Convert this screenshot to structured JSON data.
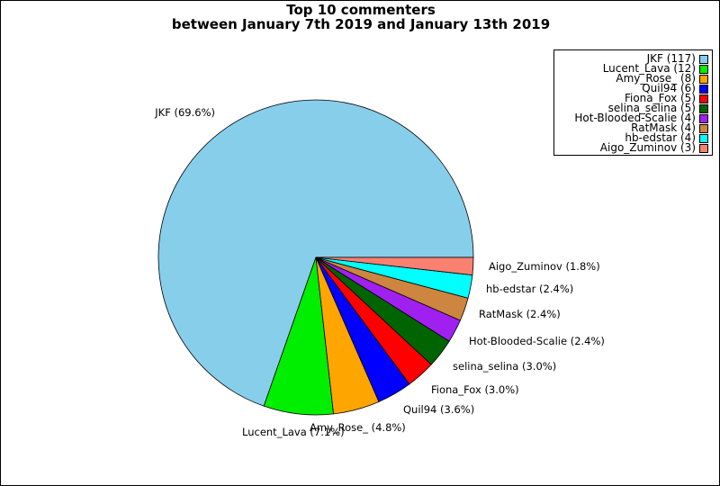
{
  "chart_data": {
    "type": "pie",
    "title": "Top 10 commenters",
    "subtitle": "between January 7th 2019 and January 13th 2019",
    "slices": [
      {
        "name": "JKF",
        "value": 117,
        "percent": "69.6%",
        "color": "#87CEEB"
      },
      {
        "name": "Lucent_Lava",
        "value": 12,
        "percent": "7.1%",
        "color": "#00EE00"
      },
      {
        "name": "Amy_Rose_",
        "value": 8,
        "percent": "4.8%",
        "color": "#FFA500"
      },
      {
        "name": "Quil94",
        "value": 6,
        "percent": "3.6%",
        "color": "#0000FF"
      },
      {
        "name": "Fiona_Fox",
        "value": 5,
        "percent": "3.0%",
        "color": "#FF0000"
      },
      {
        "name": "selina_selina",
        "value": 5,
        "percent": "3.0%",
        "color": "#006400"
      },
      {
        "name": "Hot-Blooded-Scalie",
        "value": 4,
        "percent": "2.4%",
        "color": "#A020F0"
      },
      {
        "name": "RatMask",
        "value": 4,
        "percent": "2.4%",
        "color": "#CD853F"
      },
      {
        "name": "hb-edstar",
        "value": 4,
        "percent": "2.4%",
        "color": "#00FFFF"
      },
      {
        "name": "Aigo_Zuminov",
        "value": 3,
        "percent": "1.8%",
        "color": "#FA8072"
      }
    ],
    "legend_position": "top-right"
  }
}
